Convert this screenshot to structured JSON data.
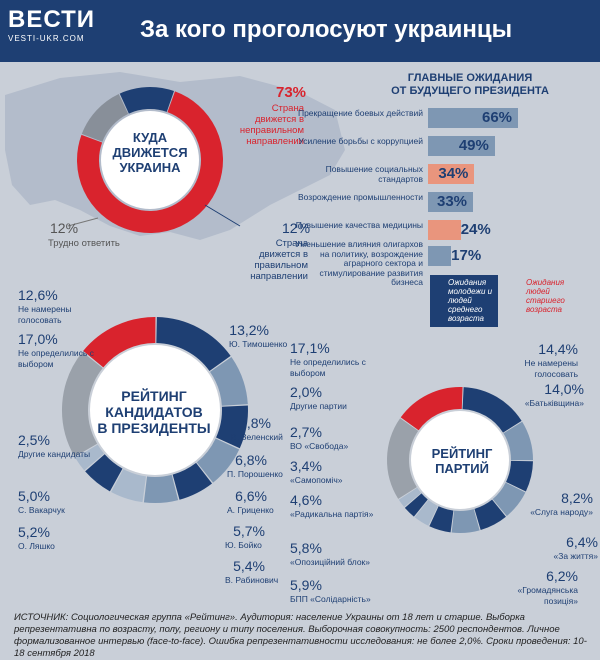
{
  "header": {
    "logo": "ВЕСТИ",
    "logo_sub": "VESTI-UKR.COM",
    "title": "За кого проголосуют украинцы"
  },
  "direction": {
    "center": [
      "КУДА",
      "ДВИЖЕТСЯ",
      "УКРАИНА"
    ],
    "wrong_pct": "73%",
    "wrong_label": "Страна движется в неправильном направлении",
    "hard_pct": "12%",
    "hard_label": "Трудно ответить",
    "right_pct": "12%",
    "right_label": "Страна движется в правильном направлении"
  },
  "expectations": {
    "title_lines": [
      "ГЛАВНЫЕ ОЖИДАНИЯ",
      "ОТ БУДУЩЕГО ПРЕЗИДЕНТА"
    ],
    "young_legend": "Ожидания молодежи и людей среднего возраста",
    "old_legend": "Ожидания людей старшего возраста"
  },
  "candidates": {
    "center": [
      "РЕЙТИНГ",
      "КАНДИДАТОВ",
      "В ПРЕЗИДЕНТЫ"
    ]
  },
  "parties": {
    "center": [
      "РЕЙТИНГ",
      "ПАРТИЙ"
    ]
  },
  "source": "ИСТОЧНИК: Социологическая группа «Рейтинг». Аудитория: население Украины от 18 лет и старше. Выборка репрезентативна по возрасту, полу, региону и типу поселения. Выборочная совокупность: 2500 респондентов. Личное формализованное интервью (face-to-face). Ошибка репрезентативности исследования: не более 2,0%. Сроки проведения: 10-18 сентября 2018",
  "colors": {
    "navy": "#1e3f73",
    "red": "#d9232d",
    "salmon": "#e9957d",
    "steel": "#7e97b3",
    "gray": "#888f99"
  },
  "chart_data": [
    {
      "type": "pie",
      "labels": [
        "Страна движется в неправильном направлении",
        "Трудно ответить",
        "Страна движется в правильном направлении"
      ],
      "values": [
        73,
        12,
        12
      ]
    },
    {
      "type": "bar",
      "categories": [
        "Прекращение боевых действий",
        "Усиление борьбы с коррупцией",
        "Повышение социальных стандартов",
        "Возрождение промышленности",
        "Повышение качества медицины",
        "Уменьшение влияния олигархов на политику, возрождение аграрного сектора и стимулирование развития бизнеса"
      ],
      "values": [
        66,
        49,
        34,
        33,
        24,
        17
      ],
      "labels": [
        "66%",
        "49%",
        "34%",
        "33%",
        "24%",
        "17%"
      ],
      "group": [
        "young",
        "young",
        "old",
        "young",
        "old",
        "young"
      ]
    },
    {
      "type": "pie",
      "labels": [
        "Ю. Тимошенко",
        "В. Зеленский",
        "П. Порошенко",
        "А. Гриценко",
        "Ю. Бойко",
        "В. Рабинович",
        "О. Ляшко",
        "С. Вакарчук",
        "Другие кандидаты",
        "Не определились с выбором",
        "Не намерены голосовать"
      ],
      "values": [
        13.2,
        7.8,
        6.8,
        6.6,
        5.7,
        5.4,
        5.2,
        5.0,
        2.5,
        17.0,
        12.6
      ],
      "display": [
        "13,2%",
        "7,8%",
        "6,8%",
        "6,6%",
        "5,7%",
        "5,4%",
        "5,2%",
        "5,0%",
        "2,5%",
        "17,0%",
        "12,6%"
      ]
    },
    {
      "type": "pie",
      "labels": [
        "«Батьківщина»",
        "«Слуга народу»",
        "«За життя»",
        "«Громадянська позиція»",
        "БПП «Солідарність»",
        "«Опозиційний блок»",
        "«Радикальна партія»",
        "«Самопоміч»",
        "ВО «Свобода»",
        "Другие партии",
        "Не определились с выбором",
        "Не намерены голосовать"
      ],
      "values": [
        14.0,
        8.2,
        6.4,
        6.2,
        5.9,
        5.8,
        4.6,
        3.4,
        2.7,
        2.0,
        17.1,
        14.4
      ],
      "display": [
        "14,0%",
        "8,2%",
        "6,4%",
        "6,2%",
        "5,9%",
        "5,8%",
        "4,6%",
        "3,4%",
        "2,7%",
        "2,0%",
        "17,1%",
        "14,4%"
      ]
    }
  ]
}
